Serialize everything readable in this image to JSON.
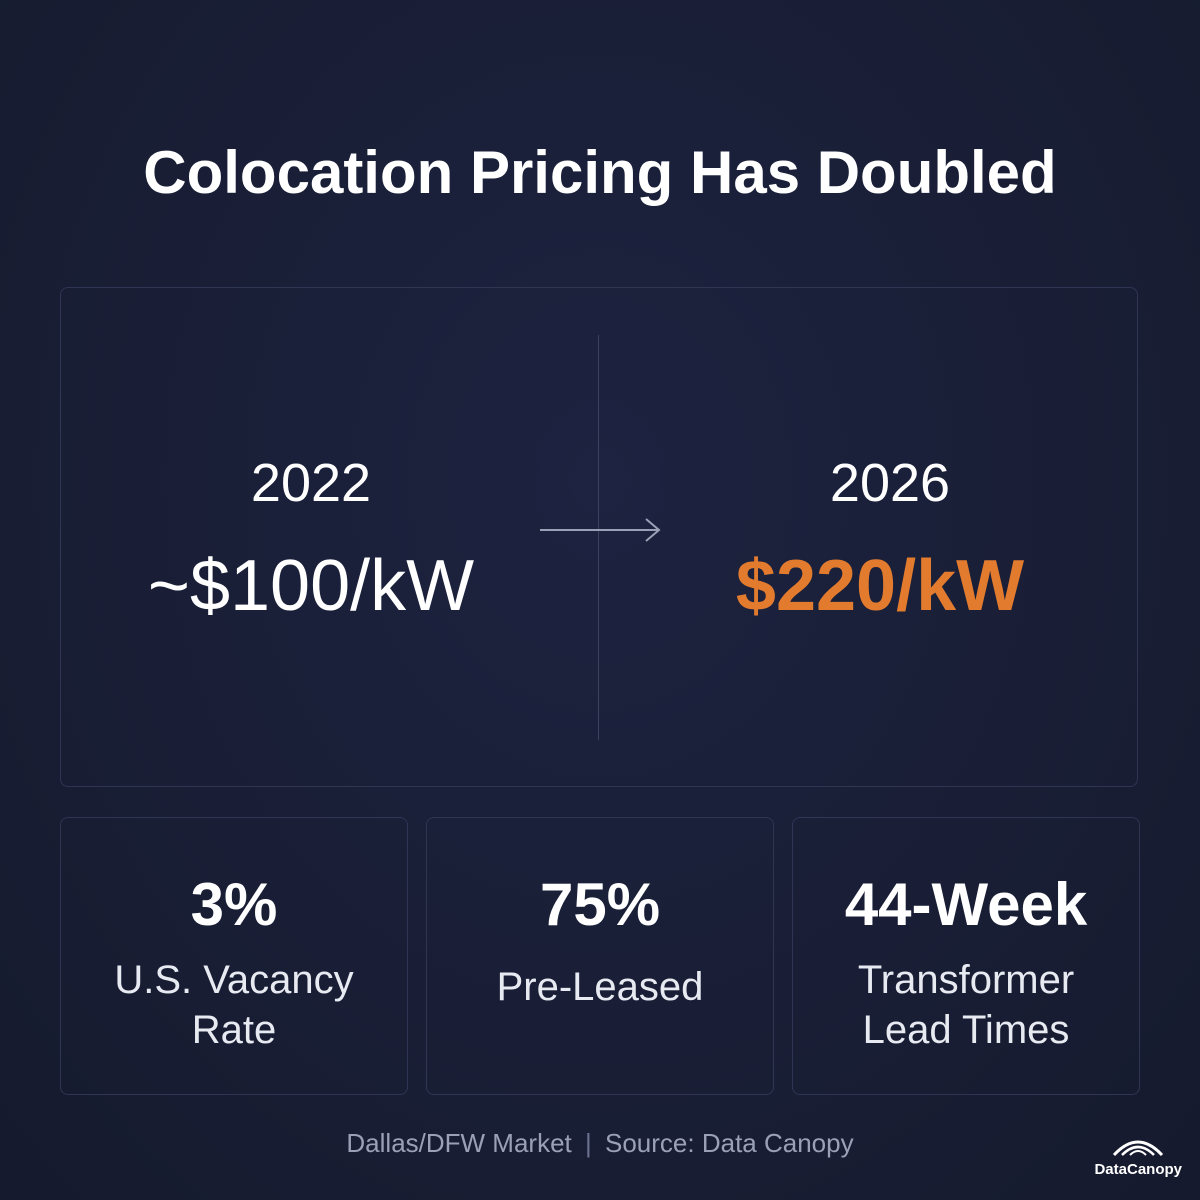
{
  "title": "Colocation Pricing Has Doubled",
  "comparison": {
    "from": {
      "year": "2022",
      "price": "~$100/kW"
    },
    "to": {
      "year": "2026",
      "price": "$220/kW"
    }
  },
  "stats": [
    {
      "value": "3%",
      "label": "U.S. Vacancy Rate"
    },
    {
      "value": "75%",
      "label": "Pre-Leased"
    },
    {
      "value": "44-Week",
      "label": "Transformer Lead Times"
    }
  ],
  "footer": {
    "market": "Dallas/DFW Market",
    "source": "Source: Data Canopy"
  },
  "logo": "DataCanopy"
}
